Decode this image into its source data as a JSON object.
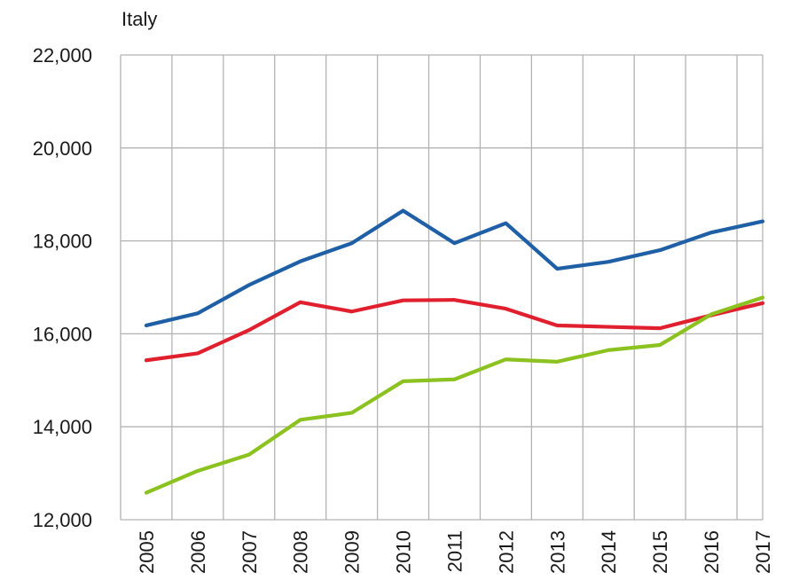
{
  "chart_data": {
    "type": "line",
    "title": "Italy",
    "xlabel": "",
    "ylabel": "",
    "x": [
      "2005",
      "2006",
      "2007",
      "2008",
      "2009",
      "2010",
      "2011",
      "2012",
      "2013",
      "2014",
      "2015",
      "2016",
      "2017"
    ],
    "yticks": [
      "12,000",
      "14,000",
      "16,000",
      "18,000",
      "20,000",
      "22,000"
    ],
    "ylim": [
      12000,
      22000
    ],
    "grid": true,
    "legend": "none",
    "series": [
      {
        "color": "#1f5fa6",
        "values": [
          16180,
          16440,
          17050,
          17560,
          17950,
          18650,
          17950,
          18380,
          17400,
          17550,
          17800,
          18180,
          18420
        ]
      },
      {
        "color": "#e0202e",
        "values": [
          15430,
          15580,
          16080,
          16680,
          16480,
          16720,
          16730,
          16540,
          16180,
          16150,
          16120,
          16400,
          16660
        ]
      },
      {
        "color": "#8cc21f",
        "values": [
          12580,
          13050,
          13400,
          14150,
          14300,
          14980,
          15020,
          15450,
          15400,
          15650,
          15760,
          16420,
          16780
        ]
      }
    ]
  }
}
